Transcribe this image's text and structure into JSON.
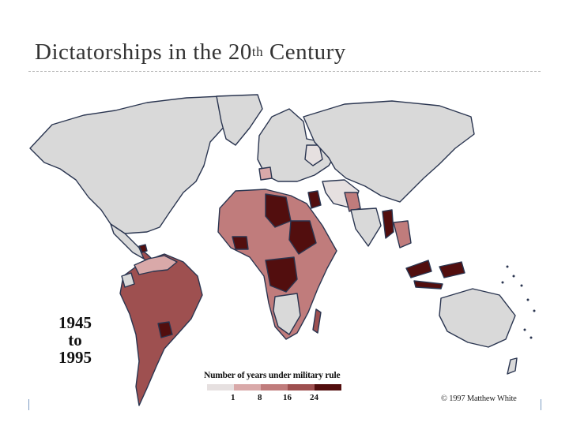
{
  "slide": {
    "title_main": "Dictatorships in the 20",
    "title_sup": "th",
    "title_end": " Century"
  },
  "map": {
    "period": {
      "start": "1945",
      "to": "to",
      "end": "1995"
    },
    "legend": {
      "title": "Number of years under military rule",
      "ticks": [
        "1",
        "8",
        "16",
        "24"
      ],
      "colors": [
        "#e6e0e0",
        "#d9a9a9",
        "#c07c7c",
        "#9e5050",
        "#520e0e"
      ]
    },
    "copyright": "© 1997 Matthew White",
    "colors": {
      "ocean": "#ffffff",
      "land_none": "#d9d9d9",
      "border": "#2a3550"
    }
  }
}
